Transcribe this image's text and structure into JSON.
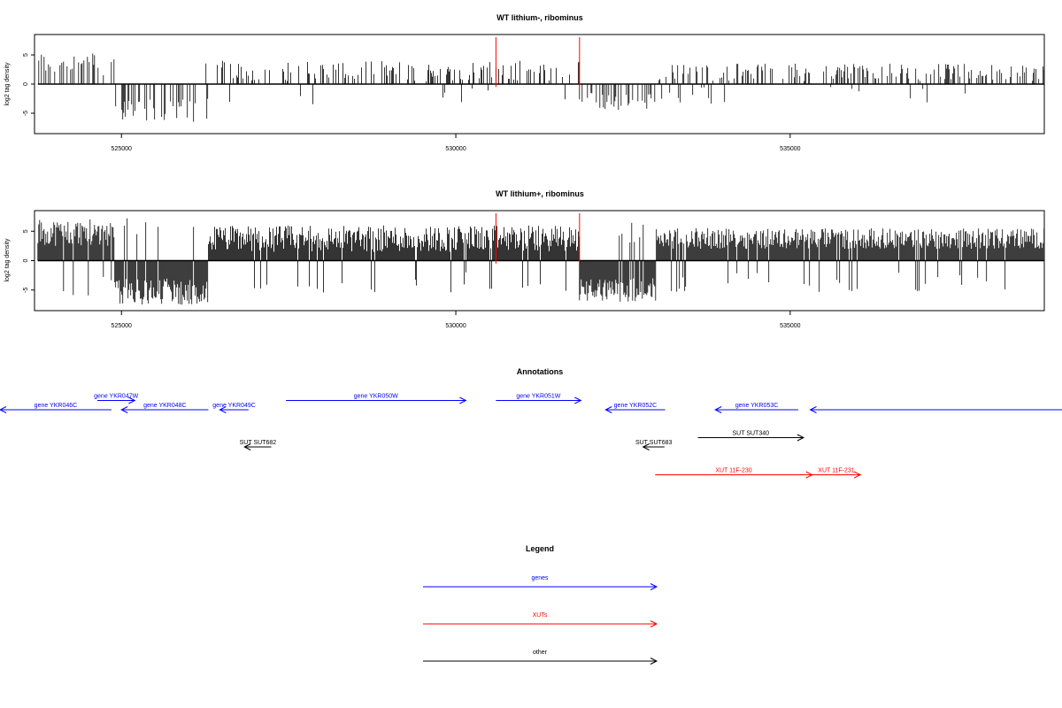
{
  "chart_data": [
    {
      "type": "bar",
      "title": "WT lithium-, ribominus",
      "ylabel": "log2 tag density",
      "xlim": [
        523700,
        538800
      ],
      "ylim": [
        -8.5,
        8.5
      ],
      "yticks": [
        -5,
        0,
        5
      ],
      "xticks": [
        525000,
        530000,
        535000
      ],
      "xtick_labels": [
        "525000",
        "530000",
        "535000"
      ],
      "data_range": [
        523750,
        538800
      ],
      "bar_color": "#000000",
      "markers": [
        530600,
        531850
      ],
      "marker_color": "#ff0000",
      "segments": [
        {
          "start": 523750,
          "end": 524900,
          "sign": 1,
          "min": 1.5,
          "max": 5.5
        },
        {
          "start": 524900,
          "end": 526300,
          "sign": -1,
          "min": 2.5,
          "max": 6.5
        },
        {
          "start": 526300,
          "end": 531850,
          "sign": 1,
          "min": 0.5,
          "max": 4.0
        },
        {
          "start": 531850,
          "end": 533000,
          "sign": -1,
          "min": 1.5,
          "max": 4.5
        },
        {
          "start": 533000,
          "end": 538800,
          "sign": 1,
          "min": 0.5,
          "max": 3.5
        }
      ],
      "density": 0.35
    },
    {
      "type": "bar",
      "title": "WT lithium+, ribominus",
      "ylabel": "log2 tag density",
      "xlim": [
        523700,
        538800
      ],
      "ylim": [
        -8.5,
        8.5
      ],
      "yticks": [
        -5,
        0,
        5
      ],
      "xticks": [
        525000,
        530000,
        535000
      ],
      "xtick_labels": [
        "525000",
        "530000",
        "535000"
      ],
      "data_range": [
        523750,
        538800
      ],
      "bar_color": "#000000",
      "markers": [
        530600,
        531850
      ],
      "marker_color": "#ff0000",
      "segments": [
        {
          "start": 523750,
          "end": 524900,
          "sign": 1,
          "min": 2.5,
          "max": 7.0
        },
        {
          "start": 524900,
          "end": 526300,
          "sign": -1,
          "min": 3.0,
          "max": 7.5
        },
        {
          "start": 526300,
          "end": 531850,
          "sign": 1,
          "min": 1.5,
          "max": 6.0
        },
        {
          "start": 531850,
          "end": 533000,
          "sign": -1,
          "min": 3.0,
          "max": 7.0
        },
        {
          "start": 533000,
          "end": 538800,
          "sign": 1,
          "min": 2.0,
          "max": 5.5
        }
      ],
      "density": 1.0
    },
    {
      "type": "annotation_track",
      "title": "Annotations",
      "features": [
        {
          "label": "gene YKR046C",
          "start": 523100,
          "end": 524850,
          "strand": "-",
          "row": 0,
          "color": "#0000ff"
        },
        {
          "label": "gene YKR047W",
          "start": 524640,
          "end": 525200,
          "strand": "+",
          "row": -1,
          "color": "#0000ff"
        },
        {
          "label": "gene YKR048C",
          "start": 525000,
          "end": 526300,
          "strand": "-",
          "row": 0,
          "color": "#0000ff"
        },
        {
          "label": "gene YKR049C",
          "start": 526470,
          "end": 526900,
          "strand": "-",
          "row": 0,
          "color": "#0000ff"
        },
        {
          "label": "gene YKR050W",
          "start": 527460,
          "end": 530150,
          "strand": "+",
          "row": -1,
          "color": "#0000ff"
        },
        {
          "label": "gene YKR051W",
          "start": 530600,
          "end": 531870,
          "strand": "+",
          "row": -1,
          "color": "#0000ff"
        },
        {
          "label": "gene YKR052C",
          "start": 532240,
          "end": 533130,
          "strand": "-",
          "row": 0,
          "color": "#0000ff"
        },
        {
          "label": "gene YKR053C",
          "start": 533880,
          "end": 535120,
          "strand": "-",
          "row": 0,
          "color": "#0000ff"
        },
        {
          "label": "",
          "start": 535300,
          "end": 539250,
          "strand": "-",
          "row": 0,
          "color": "#0000ff"
        },
        {
          "label": "SUT SUT682",
          "start": 526840,
          "end": 527240,
          "strand": "-",
          "row": 4,
          "color": "#000000"
        },
        {
          "label": "SUT SUT683",
          "start": 532800,
          "end": 533120,
          "strand": "-",
          "row": 4,
          "color": "#000000"
        },
        {
          "label": "SUT SUT340",
          "start": 533620,
          "end": 535200,
          "strand": "+",
          "row": 3,
          "color": "#000000"
        },
        {
          "label": "XUT 11F-230",
          "start": 532980,
          "end": 535330,
          "strand": "+",
          "row": 7,
          "color": "#ff0000"
        },
        {
          "label": "XUT 11F-231",
          "start": 535330,
          "end": 536050,
          "strand": "+",
          "row": 7,
          "color": "#ff0000"
        }
      ]
    },
    {
      "type": "legend",
      "title": "Legend",
      "entries": [
        {
          "label": "genes",
          "color": "#0000ff"
        },
        {
          "label": "XUTs",
          "color": "#ff0000"
        },
        {
          "label": "other",
          "color": "#000000"
        }
      ]
    }
  ]
}
